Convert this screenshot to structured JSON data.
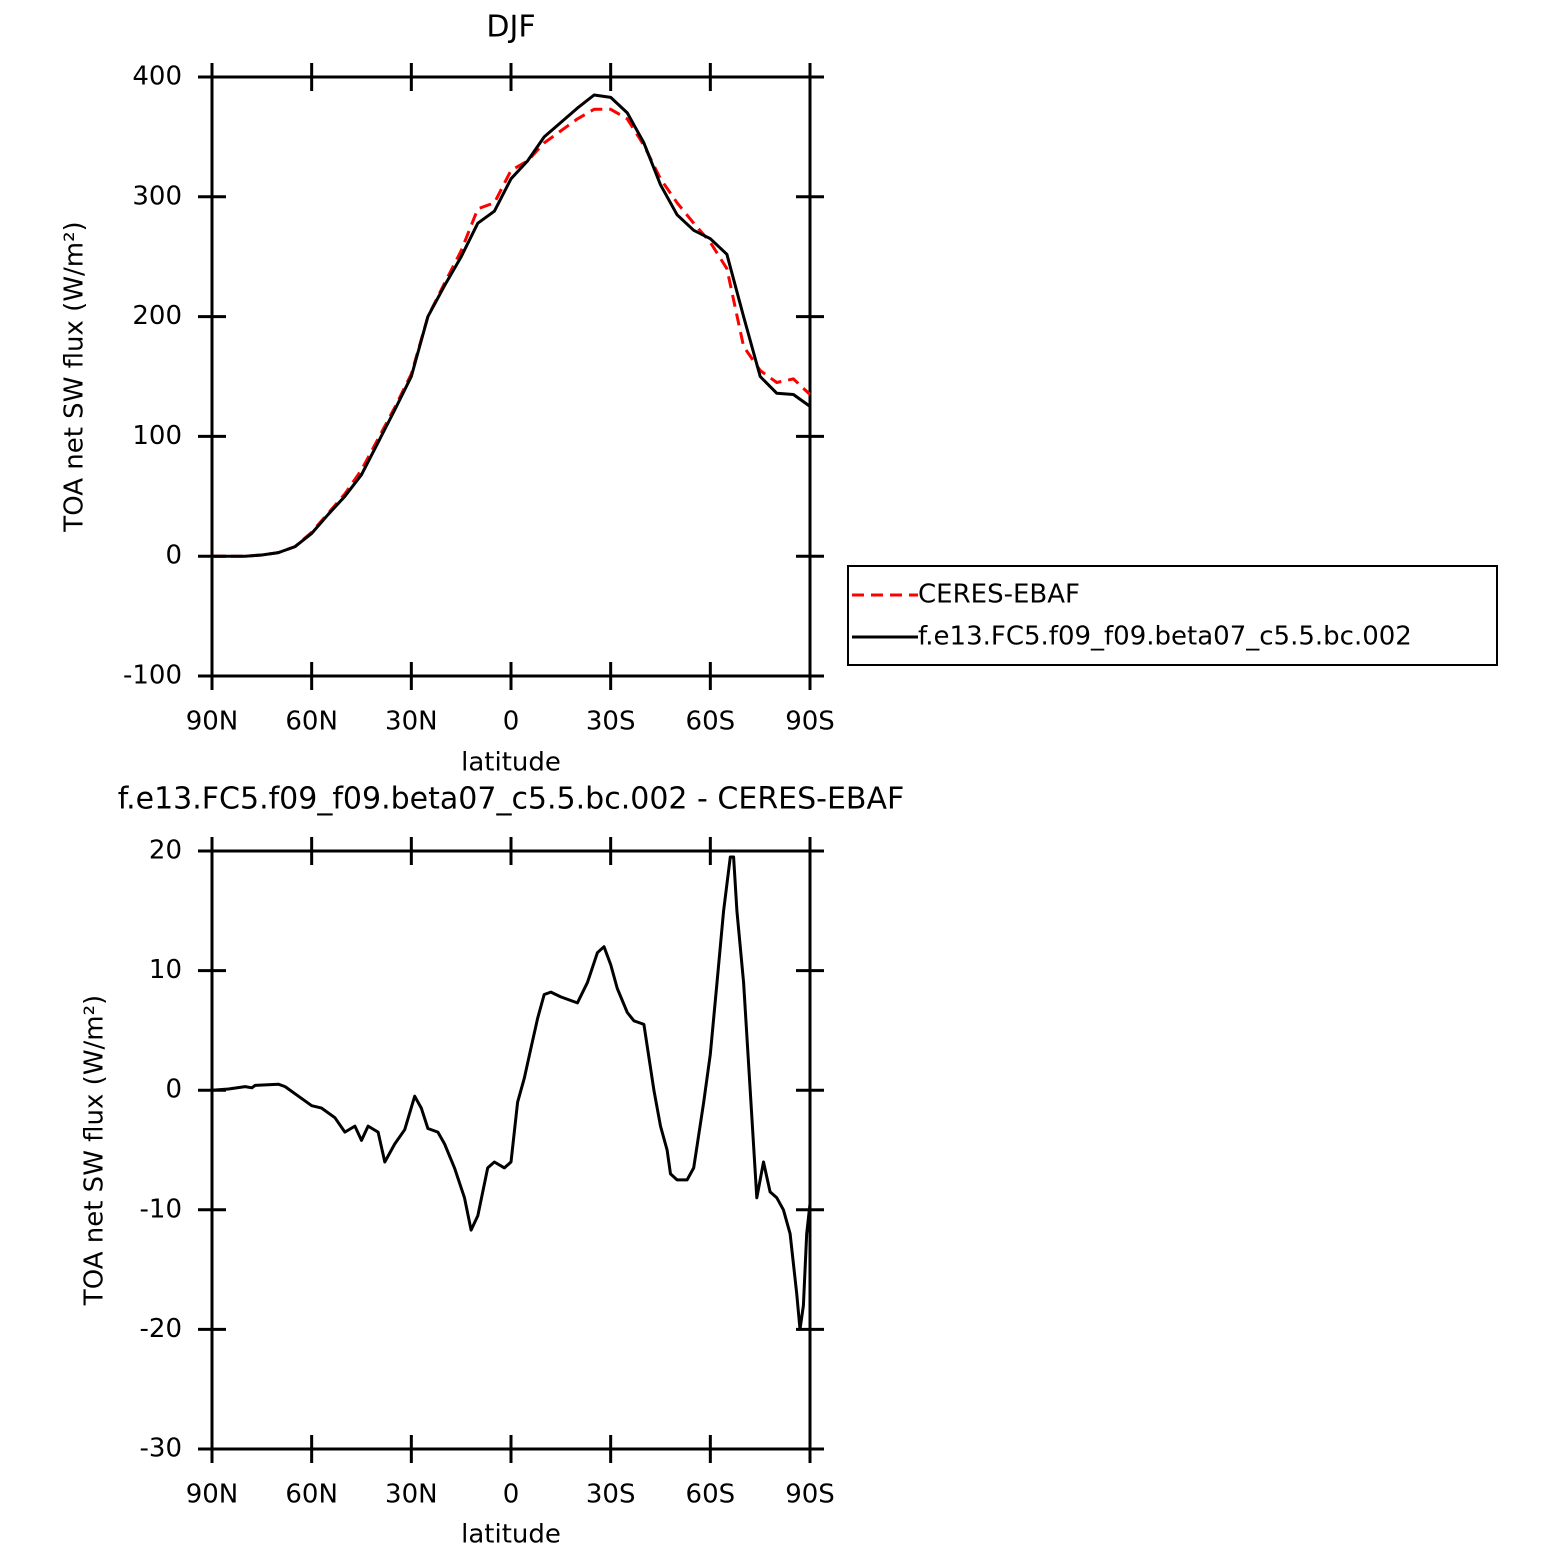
{
  "chart_data": [
    {
      "type": "line",
      "title": "DJF",
      "x_label": "latitude",
      "y_label": "TOA net SW flux (W/m²)",
      "xlim": [
        90,
        -90
      ],
      "xticks": [
        {
          "value": 90,
          "label": "90N"
        },
        {
          "value": 60,
          "label": "60N"
        },
        {
          "value": 30,
          "label": "30N"
        },
        0,
        {
          "value": -30,
          "label": "30S"
        },
        {
          "value": -60,
          "label": "60S"
        },
        {
          "value": -90,
          "label": "90S"
        }
      ],
      "ylim": [
        -100,
        400
      ],
      "yticks": [
        -100,
        0,
        100,
        200,
        300,
        400
      ],
      "legend": "right",
      "x": [
        90,
        85,
        80,
        75,
        70,
        65,
        60,
        55,
        50,
        45,
        40,
        35,
        30,
        25,
        20,
        15,
        10,
        5,
        0,
        -5,
        -10,
        -15,
        -20,
        -25,
        -30,
        -35,
        -40,
        -45,
        -50,
        -55,
        -60,
        -65,
        -70,
        -75,
        -80,
        -85,
        -90
      ],
      "series": [
        {
          "name": "CERES-EBAF",
          "color": "#ff0000",
          "dash": true,
          "values": [
            0,
            0,
            0,
            1,
            3,
            8,
            20,
            36,
            52,
            72,
            98,
            124,
            152,
            200,
            228,
            255,
            290,
            295,
            322,
            330,
            345,
            355,
            365,
            373,
            373,
            365,
            343,
            315,
            295,
            278,
            262,
            240,
            175,
            155,
            145,
            148,
            135
          ]
        },
        {
          "name": "f.e13.FC5.f09_f09.beta07_c5.5.bc.002",
          "color": "#000000",
          "dash": false,
          "values": [
            0,
            0,
            0,
            1,
            3,
            8,
            19,
            35,
            50,
            68,
            95,
            122,
            150,
            200,
            226,
            250,
            278,
            288,
            315,
            330,
            350,
            362,
            374,
            385,
            383,
            370,
            345,
            310,
            285,
            272,
            265,
            252,
            200,
            150,
            136,
            135,
            125
          ]
        }
      ]
    },
    {
      "type": "line",
      "title": "f.e13.FC5.f09_f09.beta07_c5.5.bc.002 - CERES-EBAF",
      "x_label": "latitude",
      "y_label": "TOA net SW flux (W/m²)",
      "xlim": [
        90,
        -90
      ],
      "xticks": [
        {
          "value": 90,
          "label": "90N"
        },
        {
          "value": 60,
          "label": "60N"
        },
        {
          "value": 30,
          "label": "30N"
        },
        0,
        {
          "value": -30,
          "label": "30S"
        },
        {
          "value": -60,
          "label": "60S"
        },
        {
          "value": -90,
          "label": "90S"
        }
      ],
      "ylim": [
        -30,
        20
      ],
      "yticks": [
        -30,
        -20,
        -10,
        0,
        10,
        20
      ],
      "x": [
        90,
        85,
        80,
        78,
        77,
        70,
        68,
        65,
        60,
        57,
        53,
        50,
        47,
        45,
        43,
        40,
        38,
        35,
        32,
        29,
        27,
        25,
        22,
        20,
        17,
        14,
        12,
        10,
        7,
        5,
        2,
        0,
        -2,
        -4,
        -6,
        -8,
        -10,
        -12,
        -15,
        -18,
        -20,
        -23,
        -26,
        -28,
        -30,
        -32,
        -35,
        -37,
        -40,
        -43,
        -45,
        -47,
        -48,
        -50,
        -53,
        -55,
        -58,
        -60,
        -62,
        -64,
        -66,
        -67,
        -68,
        -70,
        -72,
        -74,
        -76,
        -78,
        -80,
        -82,
        -84,
        -86,
        -87,
        -88,
        -89,
        -90
      ],
      "series": [
        {
          "name": "f.e13.FC5.f09_f09.beta07_c5.5.bc.002 - CERES-EBAF",
          "color": "#000000",
          "dash": false,
          "values": [
            0,
            0.1,
            0.3,
            0.2,
            0.4,
            0.5,
            0.3,
            -0.3,
            -1.3,
            -1.5,
            -2.3,
            -3.5,
            -3,
            -4.2,
            -3,
            -3.5,
            -6,
            -4.5,
            -3.3,
            -0.5,
            -1.5,
            -3.2,
            -3.5,
            -4.5,
            -6.5,
            -9,
            -11.7,
            -10.5,
            -6.5,
            -6,
            -6.5,
            -6,
            -1,
            1,
            3.5,
            6,
            8,
            8.2,
            7.8,
            7.5,
            7.3,
            9,
            11.5,
            12,
            10.5,
            8.5,
            6.5,
            5.8,
            5.5,
            0,
            -3,
            -5,
            -7,
            -7.5,
            -7.5,
            -6.5,
            -1,
            3,
            9,
            15,
            19.5,
            19.5,
            15,
            9,
            0,
            -9,
            -6,
            -8.5,
            -9,
            -10,
            -12,
            -17,
            -20,
            -18,
            -12,
            -9.5
          ]
        }
      ]
    }
  ]
}
